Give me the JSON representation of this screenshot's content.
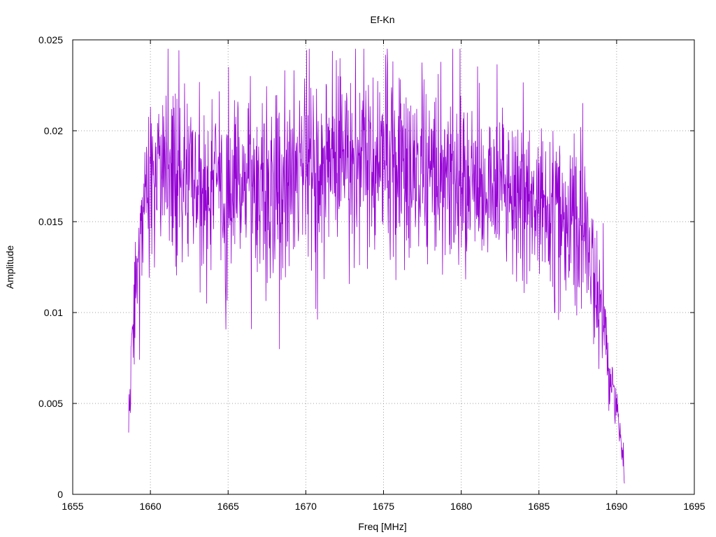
{
  "chart_data": {
    "type": "line",
    "title": "Ef-Kn",
    "xlabel": "Freq [MHz]",
    "ylabel": "Amplitude",
    "xlim": [
      1655,
      1695
    ],
    "ylim": [
      0,
      0.025
    ],
    "x_ticks": [
      1655,
      1660,
      1665,
      1670,
      1675,
      1680,
      1685,
      1690,
      1695
    ],
    "x_tick_labels": [
      "1655",
      "1660",
      "1665",
      "1670",
      "1675",
      "1680",
      "1685",
      "1690",
      "1695"
    ],
    "y_ticks": [
      0,
      0.005,
      0.01,
      0.015,
      0.02,
      0.025
    ],
    "y_tick_labels": [
      "0",
      "0.005",
      "0.01",
      "0.015",
      "0.02",
      "0.025"
    ],
    "grid": true,
    "legend": "none",
    "series": [
      {
        "color": "#9400d3",
        "x_start": 1658.6,
        "x_end": 1690.5,
        "envelope_points": [
          [
            1658.6,
            0.0035
          ],
          [
            1658.8,
            0.0085
          ],
          [
            1659.0,
            0.0105
          ],
          [
            1659.3,
            0.0125
          ],
          [
            1659.6,
            0.016
          ],
          [
            1660.0,
            0.0172
          ],
          [
            1661.0,
            0.0175
          ],
          [
            1663.0,
            0.017
          ],
          [
            1665.0,
            0.0172
          ],
          [
            1668.0,
            0.0168
          ],
          [
            1670.0,
            0.0175
          ],
          [
            1672.0,
            0.0182
          ],
          [
            1674.0,
            0.0185
          ],
          [
            1675.5,
            0.0182
          ],
          [
            1677.0,
            0.018
          ],
          [
            1680.0,
            0.0172
          ],
          [
            1683.0,
            0.0165
          ],
          [
            1685.0,
            0.016
          ],
          [
            1687.0,
            0.015
          ],
          [
            1688.0,
            0.014
          ],
          [
            1688.7,
            0.012
          ],
          [
            1689.2,
            0.009
          ],
          [
            1689.6,
            0.0065
          ],
          [
            1690.0,
            0.0045
          ],
          [
            1690.3,
            0.003
          ],
          [
            1690.5,
            0.001
          ]
        ],
        "notable_points": [
          [
            1658.6,
            0.0034
          ],
          [
            1660.0,
            0.0213
          ],
          [
            1660.8,
            0.0214
          ],
          [
            1666.5,
            0.0091
          ],
          [
            1668.3,
            0.008
          ],
          [
            1672.1,
            0.023
          ],
          [
            1675.6,
            0.0238
          ],
          [
            1676.0,
            0.0229
          ],
          [
            1675.8,
            0.0118
          ],
          [
            1690.5,
            0.0006
          ]
        ]
      }
    ]
  }
}
